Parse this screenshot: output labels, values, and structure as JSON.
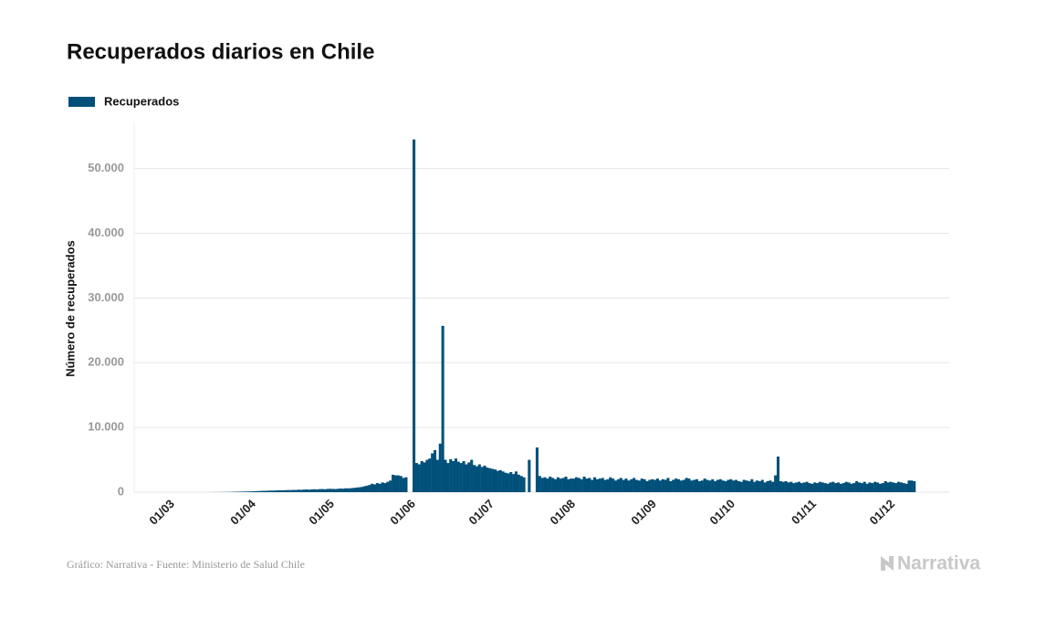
{
  "chart_data": {
    "type": "bar",
    "title": "Recuperados diarios en Chile",
    "y_label": "Número de recuperados",
    "source": "Gráfico: Narrativa - Fuente: Ministerio de Salud Chile",
    "brand": "Narrativa",
    "legend": "top-left",
    "grid": true,
    "ylim": [
      0,
      57000
    ],
    "yticks": [
      0,
      {
        "value": 10000,
        "label": "10.000"
      },
      {
        "value": 20000,
        "label": "20.000"
      },
      {
        "value": 30000,
        "label": "30.000"
      },
      {
        "value": 40000,
        "label": "40.000"
      },
      {
        "value": 50000,
        "label": "50.000"
      }
    ],
    "categories": [
      "01/03",
      null,
      null,
      null,
      null,
      null,
      null,
      null,
      null,
      null,
      null,
      null,
      null,
      null,
      null,
      null,
      null,
      null,
      null,
      null,
      null,
      null,
      null,
      null,
      null,
      null,
      null,
      null,
      null,
      null,
      null,
      "01/04",
      null,
      null,
      null,
      null,
      null,
      null,
      null,
      null,
      null,
      null,
      null,
      null,
      null,
      null,
      null,
      null,
      null,
      null,
      null,
      null,
      null,
      null,
      null,
      null,
      null,
      null,
      null,
      null,
      null,
      "01/05",
      null,
      null,
      null,
      null,
      null,
      null,
      null,
      null,
      null,
      null,
      null,
      null,
      null,
      null,
      null,
      null,
      null,
      null,
      null,
      null,
      null,
      null,
      null,
      null,
      null,
      null,
      null,
      null,
      null,
      null,
      "01/06",
      null,
      null,
      null,
      null,
      null,
      null,
      null,
      null,
      null,
      null,
      null,
      null,
      null,
      null,
      null,
      null,
      null,
      null,
      null,
      null,
      null,
      null,
      null,
      null,
      null,
      null,
      null,
      null,
      null,
      "01/07",
      null,
      null,
      null,
      null,
      null,
      null,
      null,
      null,
      null,
      null,
      null,
      null,
      null,
      null,
      null,
      null,
      null,
      null,
      null,
      null,
      null,
      null,
      null,
      null,
      null,
      null,
      null,
      null,
      null,
      null,
      "01/08",
      null,
      null,
      null,
      null,
      null,
      null,
      null,
      null,
      null,
      null,
      null,
      null,
      null,
      null,
      null,
      null,
      null,
      null,
      null,
      null,
      null,
      null,
      null,
      null,
      null,
      null,
      null,
      null,
      null,
      null,
      "01/09",
      null,
      null,
      null,
      null,
      null,
      null,
      null,
      null,
      null,
      null,
      null,
      null,
      null,
      null,
      null,
      null,
      null,
      null,
      null,
      null,
      null,
      null,
      null,
      null,
      null,
      null,
      null,
      null,
      null,
      "01/10",
      null,
      null,
      null,
      null,
      null,
      null,
      null,
      null,
      null,
      null,
      null,
      null,
      null,
      null,
      null,
      null,
      null,
      null,
      null,
      null,
      null,
      null,
      null,
      null,
      null,
      null,
      null,
      null,
      null,
      null,
      "01/11",
      null,
      null,
      null,
      null,
      null,
      null,
      null,
      null,
      null,
      null,
      null,
      null,
      null,
      null,
      null,
      null,
      null,
      null,
      null,
      null,
      null,
      null,
      null,
      null,
      null,
      null,
      null,
      null,
      null,
      "01/12",
      null,
      null,
      null,
      null,
      null,
      null,
      null,
      null
    ],
    "series": [
      {
        "name": "Recuperados",
        "color": "#00507a",
        "values": [
          0,
          0,
          0,
          0,
          0,
          0,
          0,
          0,
          0,
          0,
          0,
          0,
          0,
          0,
          2,
          5,
          8,
          10,
          15,
          20,
          25,
          30,
          40,
          50,
          60,
          70,
          80,
          90,
          100,
          110,
          120,
          150,
          160,
          180,
          200,
          210,
          220,
          250,
          240,
          260,
          280,
          300,
          290,
          310,
          330,
          320,
          350,
          340,
          380,
          360,
          400,
          420,
          390,
          430,
          450,
          420,
          470,
          480,
          450,
          500,
          520,
          500,
          480,
          520,
          560,
          540,
          600,
          580,
          620,
          650,
          700,
          750,
          800,
          900,
          1000,
          1100,
          1300,
          1200,
          1400,
          1300,
          1500,
          1400,
          1600,
          1800,
          2700,
          2600,
          2600,
          2500,
          2200,
          2300,
          null,
          null,
          54500,
          4500,
          4300,
          4800,
          4600,
          5000,
          5200,
          6000,
          6500,
          5000,
          7500,
          25700,
          5000,
          4500,
          5100,
          4800,
          5200,
          4700,
          4500,
          4800,
          4300,
          4600,
          5000,
          4200,
          4000,
          4300,
          3900,
          4100,
          3800,
          3700,
          3600,
          3500,
          3300,
          3400,
          3200,
          3000,
          2900,
          3100,
          2800,
          3200,
          2700,
          2500,
          2300,
          null,
          5000,
          null,
          null,
          6900,
          2500,
          2200,
          2300,
          2100,
          2400,
          2200,
          2000,
          2300,
          2100,
          2200,
          2400,
          2000,
          2100,
          2100,
          2300,
          2200,
          2000,
          2400,
          2100,
          2200,
          1900,
          2300,
          2000,
          2100,
          2200,
          1900,
          2000,
          2300,
          2100,
          1800,
          2000,
          2200,
          1900,
          2100,
          1800,
          2000,
          2200,
          1900,
          1800,
          2100,
          2000,
          1700,
          1900,
          2000,
          1900,
          2100,
          1800,
          2000,
          1900,
          2200,
          1700,
          1900,
          2100,
          2000,
          1800,
          1900,
          2200,
          2100,
          1800,
          1900,
          2000,
          1700,
          1800,
          2100,
          1900,
          1800,
          2000,
          1700,
          1900,
          2000,
          1800,
          1700,
          1900,
          2000,
          1800,
          1900,
          1700,
          1600,
          1900,
          1800,
          1700,
          2000,
          1600,
          1800,
          1700,
          1900,
          1500,
          1700,
          1800,
          1600,
          2600,
          5500,
          1700,
          1600,
          1700,
          1500,
          1600,
          1400,
          1500,
          1600,
          1400,
          1500,
          1600,
          1400,
          1300,
          1500,
          1400,
          1600,
          1500,
          1400,
          1300,
          1500,
          1600,
          1400,
          1500,
          1300,
          1400,
          1600,
          1500,
          1300,
          1400,
          1700,
          1500,
          1400,
          1600,
          1300,
          1500,
          1400,
          1600,
          1500,
          1300,
          1400,
          1700,
          1500,
          1600,
          1500,
          1400,
          1600,
          1500,
          1400,
          1300,
          1800,
          1800,
          1700
        ]
      }
    ]
  }
}
